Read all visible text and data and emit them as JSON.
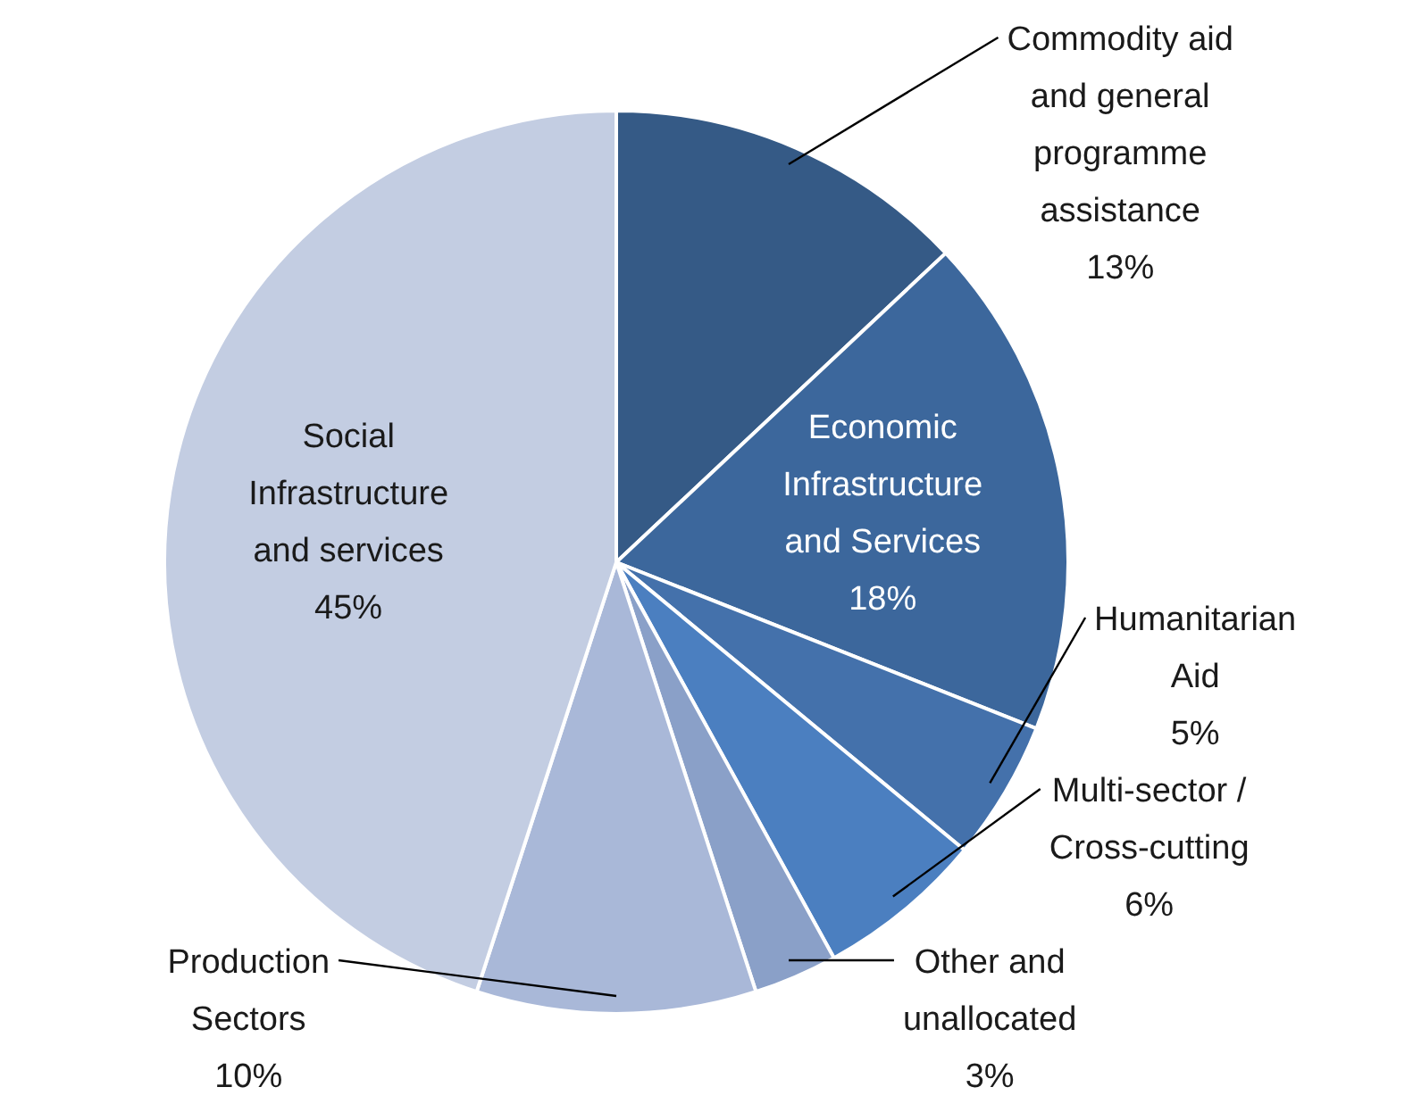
{
  "chart_data": {
    "type": "pie",
    "categories": [
      "Commodity aid and general programme assistance",
      "Economic Infrastructure and Services",
      "Humanitarian Aid",
      "Multi-sector / Cross-cutting",
      "Other and unallocated",
      "Production Sectors",
      "Social Infrastructure and services"
    ],
    "values": [
      13,
      18,
      5,
      6,
      3,
      10,
      45
    ],
    "value_labels": [
      "13%",
      "18%",
      "5%",
      "6%",
      "3%",
      "10%",
      "45%"
    ],
    "colors": [
      "#355a86",
      "#3c679c",
      "#4471ab",
      "#4b7fc0",
      "#8aa0c8",
      "#a9b8d8",
      "#c3cde2"
    ],
    "legend": false
  }
}
